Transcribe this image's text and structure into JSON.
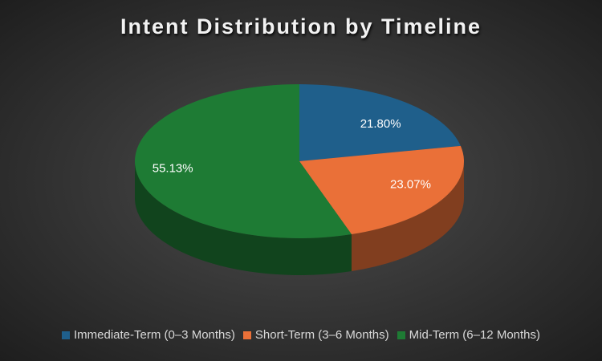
{
  "chart_data": {
    "type": "pie3d",
    "title": "Intent Distribution by Timeline",
    "categories": [
      "Immediate-Term (0–3 Months)",
      "Short-Term (3–6 Months)",
      "Mid-Term (6–12 Months)"
    ],
    "values": [
      21.8,
      23.07,
      55.13
    ],
    "value_labels": [
      "21.80%",
      "23.07%",
      "55.13%"
    ],
    "colors": [
      "#1f5f8b",
      "#ea7038",
      "#1e7b34"
    ],
    "legend": "bottom"
  }
}
